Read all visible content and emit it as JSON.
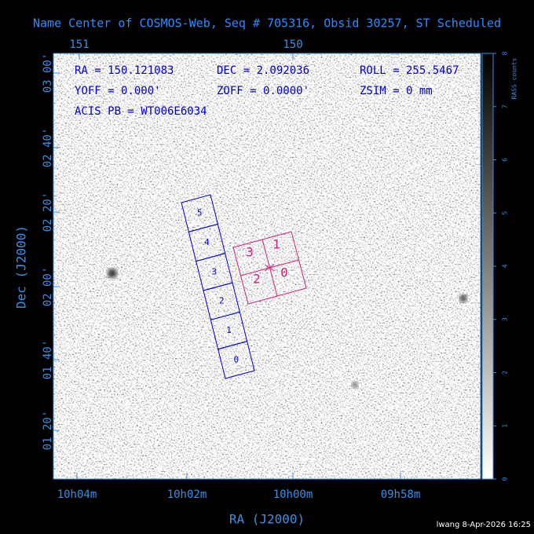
{
  "title": "Name Center of COSMOS-Web, Seq # 705316, Obsid 30257, ST Scheduled",
  "top_axis": {
    "labels": [
      "151",
      "150"
    ]
  },
  "left_axis": {
    "title": "Dec (J2000)",
    "labels": [
      "03 00'",
      "02 40'",
      "02 20'",
      "02 00'",
      "01 40'",
      "01 20'"
    ]
  },
  "bottom_axis": {
    "title": "RA (J2000)",
    "labels": [
      "10h04m",
      "10h02m",
      "10h00m",
      "09h58m"
    ]
  },
  "info": [
    [
      "RA = 150.121083",
      "DEC = 2.092036",
      "ROLL = 255.5467"
    ],
    [
      "YOFF =   0.000'",
      "ZOFF =  0.0000'",
      "ZSIM = 0 mm"
    ],
    [
      "ACIS PB = WT006E6034"
    ]
  ],
  "colorbar": {
    "label": "RASS counts",
    "ticks": [
      0,
      1,
      2,
      3,
      4,
      5,
      6,
      7,
      8
    ]
  },
  "acis_s": {
    "chips": [
      "5",
      "4",
      "3",
      "2",
      "1",
      "0"
    ]
  },
  "acis_i": {
    "chips": [
      "3",
      "1",
      "2",
      "0"
    ]
  },
  "footer": "lwang  8-Apr-2026 16:25"
}
